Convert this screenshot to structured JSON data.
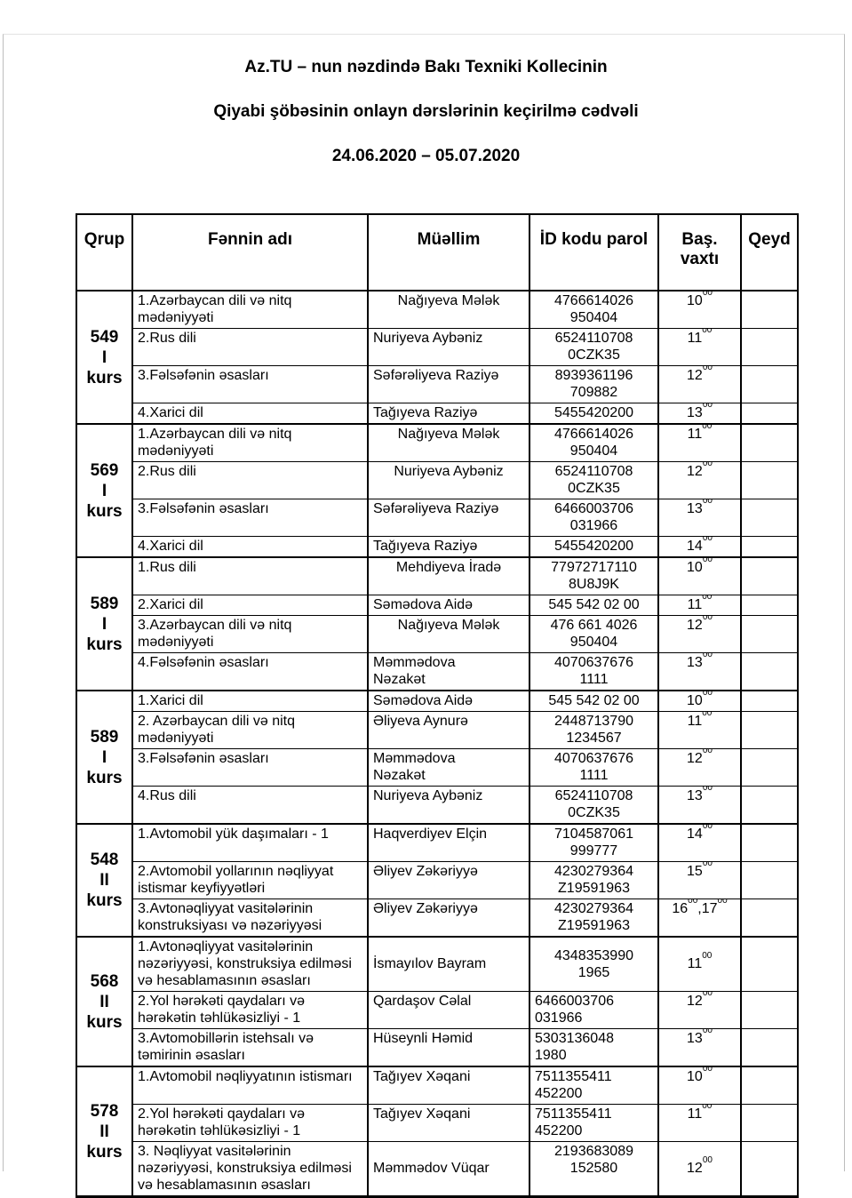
{
  "title": {
    "line1": "Az.TU – nun nəzdində Bakı Texniki Kollecinin",
    "line2": "Qiyabi şöbəsinin onlayn dərslərinin keçirilmə cədvəli",
    "line3": "24.06.2020 – 05.07.2020"
  },
  "table": {
    "headers": [
      "Qrup",
      "Fənnin adı",
      "Müəllim",
      "İD kodu parol",
      "Baş.\nvaxtı",
      "Qeyd"
    ],
    "groups": [
      {
        "label": "549\nI\nkurs",
        "rows": [
          {
            "subject": "1.Azərbaycan dili və nitq mədəniyyəti",
            "teacher": "Nağıyeva Mələk",
            "teacher_center": true,
            "id": "4766614026\n950404",
            "times": [
              [
                "10",
                "00"
              ]
            ],
            "qeyd": ""
          },
          {
            "subject": "2.Rus dili",
            "teacher": "Nuriyeva Aybəniz",
            "id": "6524110708\n0CZK35",
            "times": [
              [
                "11",
                "00"
              ]
            ],
            "qeyd": ""
          },
          {
            "subject": "3.Fəlsəfənin əsasları",
            "teacher": "Səfərəliyeva Raziyə",
            "id": "8939361196\n709882",
            "times": [
              [
                "12",
                "00"
              ]
            ],
            "qeyd": ""
          },
          {
            "subject": "4.Xarici dil",
            "teacher": "Tağıyeva Raziyə",
            "id": "5455420200",
            "times": [
              [
                "13",
                "00"
              ]
            ],
            "qeyd": ""
          }
        ]
      },
      {
        "label": "569\nI\nkurs",
        "rows": [
          {
            "subject": "1.Azərbaycan dili və nitq mədəniyyəti",
            "teacher": "Nağıyeva Mələk",
            "teacher_center": true,
            "id": "4766614026\n950404",
            "times": [
              [
                "11",
                "00"
              ]
            ],
            "qeyd": ""
          },
          {
            "subject": "2.Rus dili",
            "teacher": "Nuriyeva Aybəniz",
            "teacher_center": true,
            "id": "6524110708\n0CZK35",
            "times": [
              [
                "12",
                "00"
              ]
            ],
            "qeyd": ""
          },
          {
            "subject": "3.Fəlsəfənin əsasları",
            "teacher": "Səfərəliyeva Raziyə",
            "id": "6466003706\n031966",
            "times": [
              [
                "13",
                "00"
              ]
            ],
            "qeyd": ""
          },
          {
            "subject": "4.Xarici dil",
            "teacher": "Tağıyeva Raziyə",
            "id": "5455420200",
            "times": [
              [
                "14",
                "00"
              ]
            ],
            "qeyd": ""
          }
        ]
      },
      {
        "label": "589\nI\nkurs",
        "rows": [
          {
            "subject": "1.Rus dili",
            "teacher": "Mehdiyeva İradə",
            "teacher_center": true,
            "id": "77972717110\n8U8J9K",
            "times": [
              [
                "10",
                "00"
              ]
            ],
            "qeyd": ""
          },
          {
            "subject": "2.Xarici dil",
            "teacher": "Səmədova Aidə",
            "id": "545 542 02 00",
            "times": [
              [
                "11",
                "00"
              ]
            ],
            "qeyd": ""
          },
          {
            "subject": "3.Azərbaycan dili və nitq mədəniyyəti",
            "teacher": "Nağıyeva Mələk",
            "teacher_center": true,
            "id": "476 661 4026\n950404",
            "times": [
              [
                "12",
                "00"
              ]
            ],
            "qeyd": ""
          },
          {
            "subject": "4.Fəlsəfənin əsasları",
            "teacher": "Məmmədova\nNəzakət",
            "id": "4070637676\n1111",
            "times": [
              [
                "13",
                "00"
              ]
            ],
            "qeyd": ""
          }
        ]
      },
      {
        "label": "589\nI\nkurs",
        "rows": [
          {
            "subject": "1.Xarici dil",
            "teacher": "Səmədova Aidə",
            "id": "545 542 02 00",
            "times": [
              [
                "10",
                "00"
              ]
            ],
            "qeyd": ""
          },
          {
            "subject": "2. Azərbaycan dili və nitq mədəniyyəti",
            "teacher": "Əliyeva Aynurə",
            "id": "2448713790\n1234567",
            "times": [
              [
                "11",
                "00"
              ]
            ],
            "qeyd": ""
          },
          {
            "subject": "3.Fəlsəfənin əsasları",
            "teacher": "Məmmədova\nNəzakət",
            "id": "4070637676\n1111",
            "times": [
              [
                "12",
                "00"
              ]
            ],
            "qeyd": ""
          },
          {
            "subject": "4.Rus dili",
            "teacher": "Nuriyeva Aybəniz",
            "id": "6524110708\n0CZK35",
            "times": [
              [
                "13",
                "00"
              ]
            ],
            "qeyd": ""
          }
        ]
      },
      {
        "label": "548\nII\nkurs",
        "rows": [
          {
            "subject": "1.Avtomobil yük daşımaları - 1",
            "teacher": "Haqverdiyev Elçin",
            "id": "7104587061\n999777",
            "times": [
              [
                "14",
                "00"
              ]
            ],
            "qeyd": ""
          },
          {
            "subject": "2.Avtomobil yollarının nəqliyyat istismar keyfiyyətləri",
            "teacher": "Əliyev Zəkəriyyə",
            "id": "4230279364\nZ19591963",
            "times": [
              [
                "15",
                "00"
              ]
            ],
            "qeyd": ""
          },
          {
            "subject": "3.Avtonəqliyyat vasitələrinin konstruksiyası və nəzəriyyəsi",
            "teacher": "Əliyev Zəkəriyyə",
            "id": "4230279364\nZ19591963",
            "times": [
              [
                "16",
                "00"
              ],
              [
                "17",
                "00"
              ]
            ],
            "qeyd": ""
          }
        ]
      },
      {
        "label": "568\nII\nkurs",
        "rows": [
          {
            "subject": "1.Avtonəqliyyat vasitələrinin nəzəriyyəsi, konstruksiya edilməsi və hesablamasının əsasları",
            "teacher": "İsmayılov Bayram",
            "id": "4348353990\n1965",
            "times": [
              [
                "11",
                "00"
              ]
            ],
            "qeyd": "",
            "vmid": [
              "teacher",
              "id",
              "time"
            ]
          },
          {
            "subject": "2.Yol hərəkəti qaydaları və hərəkətin təhlükəsizliyi - 1",
            "teacher": "Qardaşov Cəlal",
            "id": "6466003706\n031966",
            "id_left": true,
            "times": [
              [
                "12",
                "00"
              ]
            ],
            "qeyd": ""
          },
          {
            "subject": "3.Avtomobillərin istehsalı və təmirinin əsasları",
            "teacher": "Hüseynli Həmid",
            "id": "5303136048\n1980",
            "id_left": true,
            "times": [
              [
                "13",
                "00"
              ]
            ],
            "qeyd": ""
          }
        ]
      },
      {
        "label": "578\nII\nkurs",
        "rows": [
          {
            "subject": "1.Avtomobil nəqliyyatının istismarı",
            "teacher": "Tağıyev Xəqani",
            "id": "7511355411\n452200",
            "id_left": true,
            "times": [
              [
                "10",
                "00"
              ]
            ],
            "qeyd": ""
          },
          {
            "subject": "2.Yol hərəkəti qaydaları və hərəkətin təhlükəsizliyi - 1",
            "teacher": "Tağıyev Xəqani",
            "id": "7511355411\n452200",
            "id_left": true,
            "times": [
              [
                "11",
                "00"
              ]
            ],
            "qeyd": ""
          },
          {
            "subject": "3. Nəqliyyat vasitələrinin nəzəriyyəsi, konstruksiya edilməsi və hesablamasının əsasları",
            "teacher": "Məmmədov Vüqar",
            "id": "2193683089\n152580",
            "times": [
              [
                "12",
                "00"
              ]
            ],
            "qeyd": "",
            "vmid": [
              "teacher",
              "time"
            ]
          }
        ]
      }
    ]
  }
}
